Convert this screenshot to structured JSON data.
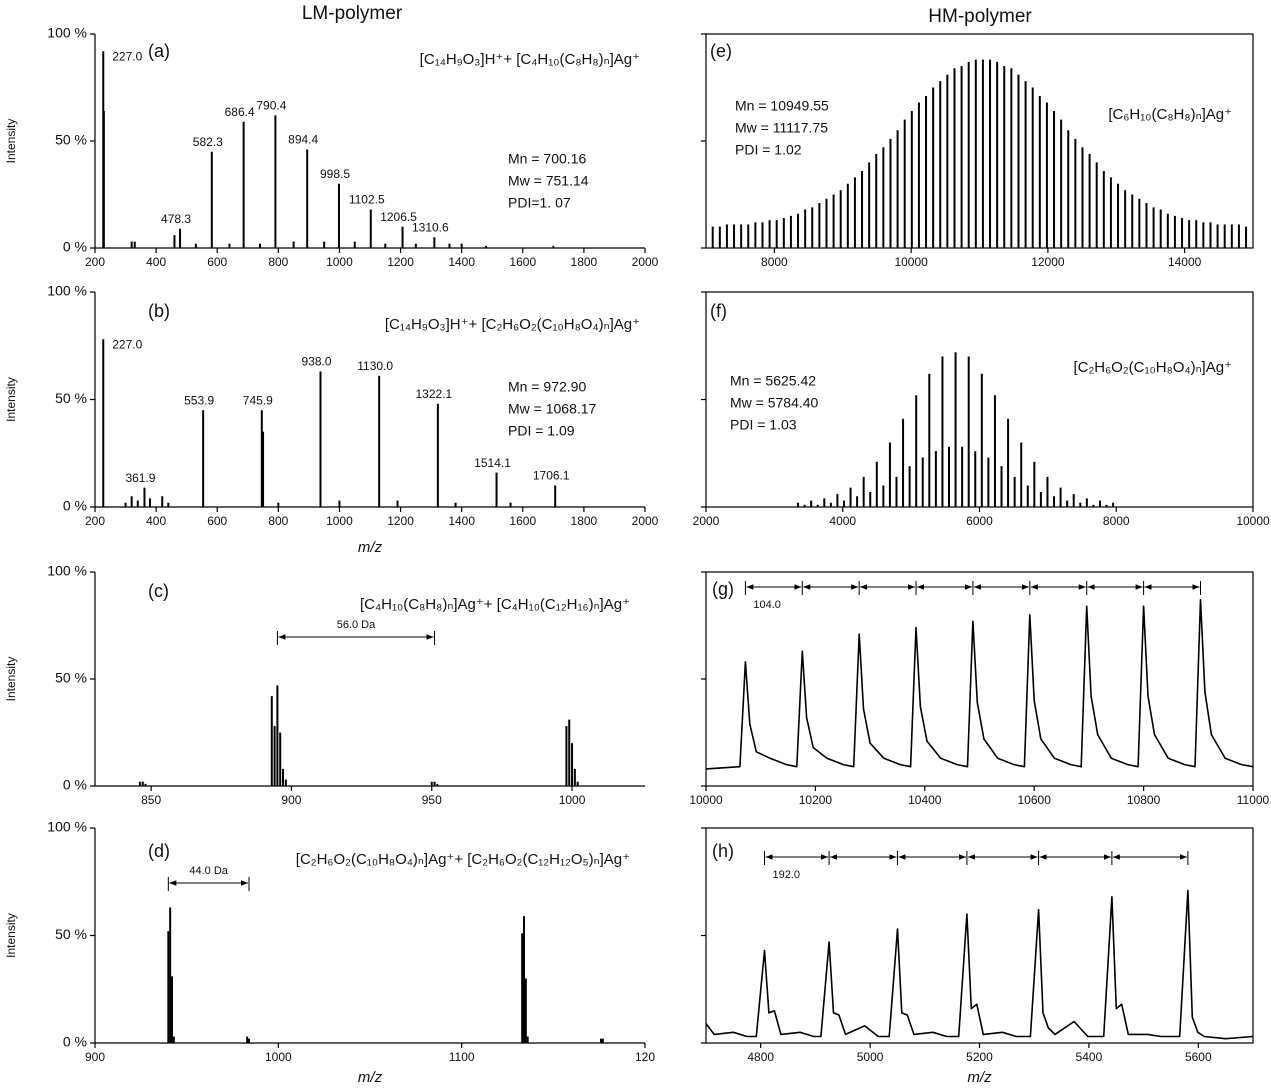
{
  "headers": [
    "LM-polymer",
    "HM-polymer"
  ],
  "chart_data": [
    {
      "type": "bar",
      "panel": "(a)",
      "formula": "[C₁₄H₉O₃]H⁺+ [C₄H₁₀(C₈H₈)ₙ]Ag⁺",
      "stats": [
        "Mn = 700.16",
        "Mw = 751.14",
        "PDI=1. 07"
      ],
      "ylabel": "Intensity",
      "frame": "axes",
      "color": "#000000",
      "x": [
        227.0,
        229,
        320,
        330,
        460,
        478.3,
        530,
        582.3,
        640,
        686.4,
        740,
        790.4,
        850,
        894.4,
        950,
        998.5,
        1050,
        1102.5,
        1150,
        1206.5,
        1250,
        1310.6,
        1360,
        1400,
        1480,
        1700
      ],
      "values": [
        92,
        64,
        3,
        3,
        6,
        9,
        2,
        45,
        2,
        59,
        2,
        62,
        3,
        46,
        3,
        30,
        3,
        18,
        2,
        10,
        2,
        5,
        2,
        2,
        1,
        1
      ],
      "point_labels": [
        "227.0",
        null,
        null,
        null,
        null,
        "478.3",
        null,
        "582.3",
        null,
        "686.4",
        null,
        "790.4",
        null,
        "894.4",
        null,
        "998.5",
        null,
        "1102.5",
        null,
        "1206.5",
        null,
        "1310.6",
        null,
        null,
        null,
        null
      ],
      "xlim": [
        200,
        2000
      ],
      "xticks": [
        200,
        400,
        600,
        800,
        1000,
        1200,
        1400,
        1600,
        1800,
        2000
      ],
      "ylim": [
        0,
        100
      ],
      "yticks": [
        {
          "value": 0,
          "label": "0 %"
        },
        {
          "value": 50,
          "label": "50 %"
        },
        {
          "value": 100,
          "label": "100 %"
        }
      ]
    },
    {
      "type": "bar",
      "panel": "(b)",
      "formula": "[C₁₄H₉O₃]H⁺+ [C₂H₆O₂(C₁₀H₈O₄)ₙ]Ag⁺",
      "stats": [
        "Mn = 972.90",
        "Mw = 1068.17",
        "PDI = 1.09"
      ],
      "ylabel": "Intensity",
      "xlabel": "m/z",
      "frame": "axes",
      "color": "#000000",
      "x": [
        227.0,
        300,
        320,
        340,
        361.9,
        380,
        420,
        440,
        553.9,
        745.9,
        750,
        800,
        938.0,
        1000,
        1130.0,
        1190,
        1322.1,
        1380,
        1514.1,
        1560,
        1706.1
      ],
      "values": [
        78,
        2,
        5,
        3,
        9,
        4,
        5,
        2,
        45,
        45,
        35,
        2,
        63,
        3,
        61,
        3,
        48,
        2,
        16,
        2,
        10
      ],
      "point_labels": [
        "227.0",
        null,
        null,
        null,
        "361.9",
        null,
        null,
        null,
        "553.9",
        "745.9",
        null,
        null,
        "938.0",
        null,
        "1130.0",
        null,
        "1322.1",
        null,
        "1514.1",
        null,
        "1706.1"
      ],
      "xlim": [
        200,
        2000
      ],
      "xticks": [
        200,
        400,
        600,
        800,
        1000,
        1200,
        1400,
        1600,
        1800,
        2000
      ],
      "ylim": [
        0,
        100
      ],
      "yticks": [
        {
          "value": 0,
          "label": "0 %"
        },
        {
          "value": 50,
          "label": "50 %"
        },
        {
          "value": 100,
          "label": "100 %"
        }
      ]
    },
    {
      "type": "bar",
      "panel": "(c)",
      "formula": "[C₄H₁₀(C₈H₈)ₙ]Ag⁺+ [C₄H₁₀(C₁₂H₁₆)ₙ]Ag⁺",
      "ylabel": "Intensity",
      "frame": "axes",
      "color": "#000000",
      "x": [
        846,
        847,
        848,
        893,
        894,
        895,
        896,
        897,
        898,
        950,
        951,
        952,
        998,
        999,
        1000,
        1001,
        1002
      ],
      "values": [
        2,
        2,
        1,
        42,
        28,
        47,
        25,
        8,
        3,
        2,
        2,
        1,
        28,
        31,
        20,
        8,
        2
      ],
      "interval": {
        "label": "56.0 Da",
        "x": [
          895,
          951
        ]
      },
      "xlim": [
        830,
        1026
      ],
      "xticks": [
        850,
        900,
        950,
        1000
      ],
      "ylim": [
        0,
        100
      ],
      "yticks": [
        {
          "value": 0,
          "label": "0 %"
        },
        {
          "value": 50,
          "label": "50 %"
        },
        {
          "value": 100,
          "label": "100 %"
        }
      ]
    },
    {
      "type": "bar",
      "panel": "(d)",
      "formula": "[C₂H₆O₂(C₁₀H₈O₄)ₙ]Ag⁺+ [C₂H₆O₂(C₁₂H₁₂O₅)ₙ]Ag⁺",
      "ylabel": "Intensity",
      "xlabel": "m/z",
      "frame": "axes",
      "color": "#000000",
      "x": [
        940,
        941,
        942,
        943,
        983,
        984,
        1133,
        1134,
        1135,
        1136,
        1176,
        1177
      ],
      "values": [
        52,
        63,
        31,
        3,
        3,
        2,
        51,
        59,
        30,
        3,
        2,
        2
      ],
      "interval": {
        "label": "44.0 Da",
        "x": [
          940,
          984
        ]
      },
      "xlim": [
        900,
        1200
      ],
      "xticks": [
        900,
        1000,
        1100,
        {
          "value": 1200,
          "label": "120"
        }
      ],
      "ylim": [
        0,
        100
      ],
      "yticks": [
        {
          "value": 0,
          "label": "0 %"
        },
        {
          "value": 50,
          "label": "50 %"
        },
        {
          "value": 100,
          "label": "100 %"
        }
      ]
    },
    {
      "type": "bar",
      "panel": "(e)",
      "formula": "[C₆H₁₀(C₈H₈)ₙ]Ag⁺",
      "stats": [
        "Mn = 10949.55",
        "Mw = 11117.75",
        "PDI = 1.02"
      ],
      "frame": "box",
      "color": "#000000",
      "ytick_labels": false,
      "x": [
        7098,
        7202,
        7306,
        7410,
        7514,
        7618,
        7722,
        7826,
        7930,
        8034,
        8138,
        8242,
        8346,
        8450,
        8554,
        8658,
        8762,
        8866,
        8970,
        9074,
        9178,
        9282,
        9386,
        9490,
        9594,
        9698,
        9802,
        9906,
        10010,
        10114,
        10218,
        10322,
        10426,
        10530,
        10634,
        10738,
        10842,
        10946,
        11050,
        11154,
        11258,
        11362,
        11466,
        11570,
        11674,
        11778,
        11882,
        11986,
        12090,
        12194,
        12298,
        12402,
        12506,
        12610,
        12714,
        12818,
        12922,
        13026,
        13130,
        13234,
        13338,
        13442,
        13546,
        13650,
        13754,
        13858,
        13962,
        14066,
        14170,
        14274,
        14378,
        14482,
        14586,
        14690,
        14794,
        14898
      ],
      "values": [
        10,
        10,
        11,
        11,
        11,
        11,
        12,
        12,
        13,
        13,
        14,
        15,
        16,
        18,
        19,
        21,
        23,
        25,
        27,
        30,
        33,
        36,
        40,
        44,
        47,
        51,
        55,
        60,
        64,
        68,
        71,
        75,
        78,
        81,
        84,
        85,
        87,
        88,
        88,
        88,
        87,
        85,
        84,
        81,
        78,
        75,
        71,
        68,
        64,
        60,
        55,
        51,
        47,
        44,
        40,
        36,
        33,
        30,
        27,
        25,
        23,
        21,
        19,
        18,
        16,
        15,
        14,
        13,
        13,
        12,
        12,
        11,
        11,
        11,
        11,
        10
      ],
      "xlim": [
        7000,
        15000
      ],
      "xticks": [
        8000,
        10000,
        12000,
        14000
      ],
      "ylim": [
        0,
        100
      ],
      "yticks": [
        0,
        50,
        100
      ]
    },
    {
      "type": "bar",
      "panel": "(f)",
      "formula": "[C₂H₆O₂(C₁₀H₈O₄)ₙ]Ag⁺",
      "stats": [
        "Mn = 5625.42",
        "Mw = 5784.40",
        "PDI = 1.03"
      ],
      "frame": "box",
      "color": "#000000",
      "ytick_labels": false,
      "x": [
        3346,
        3442,
        3538,
        3634,
        3730,
        3826,
        3922,
        4018,
        4114,
        4210,
        4306,
        4402,
        4498,
        4594,
        4690,
        4786,
        4882,
        4978,
        5074,
        5170,
        5266,
        5362,
        5458,
        5554,
        5650,
        5746,
        5842,
        5938,
        6034,
        6130,
        6226,
        6322,
        6418,
        6514,
        6610,
        6706,
        6802,
        6898,
        6994,
        7090,
        7186,
        7282,
        7378,
        7474,
        7570,
        7666,
        7762,
        7858,
        7954
      ],
      "values": [
        2,
        1,
        3,
        1,
        4,
        2,
        6,
        3,
        9,
        5,
        14,
        7,
        21,
        10,
        30,
        14,
        41,
        19,
        52,
        23,
        62,
        26,
        70,
        28,
        72,
        28,
        70,
        26,
        62,
        23,
        52,
        19,
        41,
        14,
        30,
        10,
        21,
        7,
        14,
        5,
        9,
        3,
        6,
        2,
        4,
        1,
        3,
        1,
        2
      ],
      "xlim": [
        2000,
        10000
      ],
      "xticks": [
        2000,
        4000,
        6000,
        8000,
        10000
      ],
      "ylim": [
        0,
        100
      ],
      "yticks": [
        0,
        50,
        100
      ]
    },
    {
      "type": "line",
      "panel": "(g)",
      "frame": "box",
      "color": "#000000",
      "ytick_labels": false,
      "x": [
        10000,
        10062,
        10072,
        10080,
        10092,
        10117,
        10147,
        10166,
        10176,
        10184,
        10196,
        10221,
        10251,
        10270,
        10280,
        10288,
        10300,
        10325,
        10355,
        10374,
        10384,
        10392,
        10404,
        10429,
        10459,
        10478,
        10488,
        10496,
        10508,
        10533,
        10563,
        10582,
        10592,
        10600,
        10612,
        10637,
        10667,
        10686,
        10696,
        10704,
        10716,
        10741,
        10771,
        10790,
        10800,
        10808,
        10820,
        10845,
        10875,
        10894,
        10904,
        10912,
        10924,
        10949,
        10979,
        11000
      ],
      "values": [
        8,
        9,
        58,
        29,
        16,
        13,
        10,
        9,
        63,
        32,
        18,
        13,
        10,
        9,
        71,
        36,
        20,
        13,
        10,
        9,
        74,
        37,
        21,
        13,
        10,
        9,
        77,
        39,
        22,
        13,
        10,
        9,
        80,
        40,
        22,
        13,
        10,
        9,
        84,
        42,
        24,
        13,
        10,
        9,
        84,
        42,
        24,
        13,
        10,
        9,
        87,
        44,
        24,
        13,
        10,
        9
      ],
      "interval": {
        "label": "104.0",
        "x": [
          10072,
          10176,
          10280,
          10384,
          10488,
          10592,
          10696,
          10800,
          10904
        ]
      },
      "xlim": [
        10000,
        11000
      ],
      "xticks": [
        10000,
        10200,
        10400,
        10600,
        10800,
        11000
      ],
      "ylim": [
        0,
        100
      ],
      "yticks": [
        0,
        50,
        100
      ]
    },
    {
      "type": "line",
      "panel": "(h)",
      "xlabel": "m/z",
      "frame": "box",
      "color": "#000000",
      "ytick_labels": false,
      "x": [
        4700,
        4715,
        4750,
        4775,
        4792,
        4807,
        4815,
        4825,
        4837,
        4872,
        4897,
        4910,
        4925,
        4933,
        4943,
        4955,
        4990,
        5015,
        5035,
        5050,
        5058,
        5068,
        5080,
        5115,
        5140,
        5162,
        5177,
        5185,
        5195,
        5207,
        5242,
        5267,
        5293,
        5308,
        5316,
        5326,
        5338,
        5373,
        5398,
        5427,
        5442,
        5450,
        5460,
        5472,
        5507,
        5532,
        5566,
        5581,
        5589,
        5599,
        5611,
        5650,
        5700
      ],
      "values": [
        9,
        4,
        5,
        3,
        3,
        43,
        14,
        15,
        4,
        5,
        3,
        3,
        47,
        14,
        13,
        4,
        8,
        3,
        3,
        53,
        14,
        13,
        4,
        5,
        3,
        3,
        60,
        16,
        18,
        4,
        5,
        3,
        3,
        62,
        14,
        7,
        4,
        10,
        3,
        3,
        68,
        16,
        18,
        4,
        4,
        3,
        3,
        71,
        12,
        5,
        3,
        2,
        3
      ],
      "interval": {
        "label": "192.0",
        "x": [
          4807,
          4925,
          5050,
          5177,
          5308,
          5442,
          5581
        ]
      },
      "xlim": [
        4700,
        5700
      ],
      "xticks": [
        4800,
        5000,
        5200,
        5400,
        5600
      ],
      "ylim": [
        0,
        100
      ],
      "yticks": [
        0,
        50,
        100
      ]
    }
  ]
}
